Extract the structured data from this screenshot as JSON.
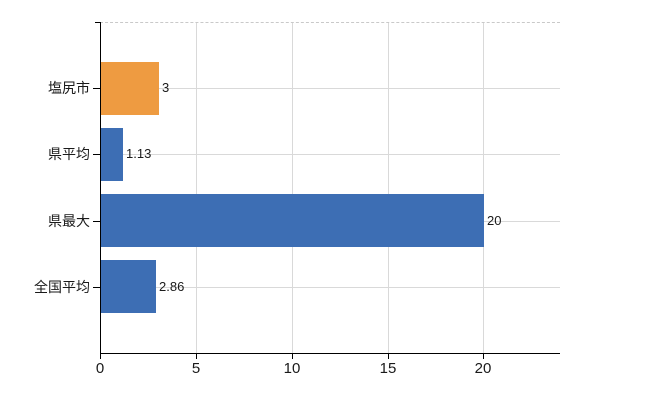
{
  "chart_data": {
    "type": "bar",
    "orientation": "horizontal",
    "title": "",
    "xlabel": "",
    "ylabel": "",
    "categories": [
      "塩尻市",
      "県平均",
      "県最大",
      "全国平均"
    ],
    "values": [
      3,
      1.13,
      20,
      2.86
    ],
    "value_labels": [
      "3",
      "1.13",
      "20",
      "2.86"
    ],
    "bar_colors": [
      "#ee9b41",
      "#3d6eb4",
      "#3d6eb4",
      "#3d6eb4"
    ],
    "x_tick_labels": [
      "0",
      "5",
      "10",
      "15",
      "20"
    ],
    "x_tick_values": [
      0,
      5,
      10,
      15,
      20
    ],
    "xlim": [
      0,
      24
    ],
    "grid": true,
    "legend_position": "none"
  },
  "colors": {
    "bar_default": "#3d6eb4",
    "bar_highlight": "#ee9b41",
    "gridline": "#d9d9d9",
    "axis": "#000000",
    "text": "#1a1a1a",
    "background": "#ffffff"
  }
}
